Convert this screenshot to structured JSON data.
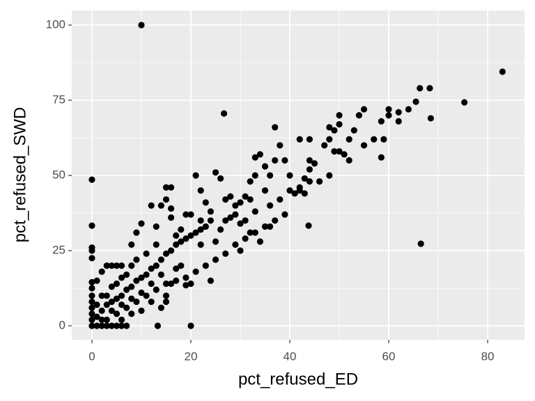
{
  "chart_data": {
    "type": "scatter",
    "x_label": "pct_refused_ED",
    "y_label": "pct_refused_SWD",
    "xlim": [
      -4.08,
      87.46
    ],
    "ylim": [
      -4.63,
      104.86
    ],
    "xticks": [
      0,
      20,
      40,
      60,
      80
    ],
    "yticks": [
      0,
      25,
      50,
      75,
      100
    ],
    "grid": true,
    "color": "#000000",
    "x": [
      10,
      83,
      75.3,
      66.5,
      26.7,
      0,
      0,
      0,
      0,
      0,
      13.3,
      20,
      43.8,
      68.5,
      68.3,
      66.3,
      65.5,
      62,
      60,
      60,
      58.5,
      59,
      58.5,
      55,
      54,
      53,
      52,
      50,
      50,
      49,
      48,
      47,
      48,
      49,
      50,
      51,
      48,
      45,
      44,
      44,
      42,
      44,
      43,
      42,
      41,
      43,
      38,
      37,
      37,
      36,
      35,
      35,
      34,
      33,
      33,
      32,
      32,
      31,
      30,
      29,
      29,
      28,
      27,
      27,
      26,
      25,
      24,
      24,
      23,
      22,
      22,
      22,
      21,
      20,
      19,
      18,
      17,
      16,
      15,
      16,
      16,
      14,
      15,
      13,
      12,
      10,
      9,
      8,
      8,
      6,
      5,
      4,
      3,
      2,
      1,
      0,
      0,
      0,
      0,
      0,
      0,
      0,
      0,
      1,
      2,
      3,
      4,
      5,
      6,
      7,
      1,
      2,
      3,
      4,
      5,
      6,
      7,
      8,
      9,
      10,
      11,
      12,
      13,
      14,
      15,
      16,
      17,
      18,
      19,
      20,
      21,
      22,
      23,
      3,
      5,
      7,
      9,
      11,
      13,
      15,
      17,
      19,
      21,
      23,
      25,
      27,
      29,
      31,
      33,
      35,
      37,
      39,
      20,
      24,
      18,
      16,
      15,
      15,
      14,
      12,
      10,
      8,
      6,
      14,
      12,
      10,
      8,
      6,
      4,
      2,
      3,
      5,
      7,
      9,
      11,
      13,
      4,
      6,
      2,
      1,
      19,
      17,
      26,
      28,
      30,
      25,
      33,
      36,
      38,
      40,
      31,
      34,
      30,
      32,
      36,
      42,
      46,
      52,
      55,
      57,
      62,
      64,
      40,
      39,
      44
    ],
    "values": [
      100,
      84.5,
      74.3,
      27.3,
      70.6,
      48.6,
      33.3,
      26,
      25,
      22.5,
      0,
      0,
      33.3,
      69,
      79,
      79,
      74.5,
      71,
      72,
      70,
      68,
      62,
      56,
      72,
      70,
      65,
      62,
      70,
      67,
      65,
      66,
      60,
      62,
      58,
      58,
      57,
      50,
      54,
      55,
      62,
      62,
      52,
      49,
      46,
      44,
      44,
      60,
      66,
      55,
      50,
      53,
      45,
      57,
      56,
      50,
      48,
      42,
      43,
      41,
      40,
      37,
      43,
      35,
      42,
      49,
      51,
      38,
      35,
      41,
      35,
      45,
      27,
      50,
      37,
      37,
      32,
      30,
      36,
      46,
      46,
      39,
      40,
      42,
      33,
      40,
      34,
      31,
      27,
      20,
      20,
      20,
      20,
      20,
      18,
      15,
      14.5,
      12.5,
      10,
      8,
      6,
      4,
      2,
      0,
      0,
      0,
      0,
      0,
      0,
      0,
      0,
      3,
      5,
      7,
      8,
      9,
      10,
      12,
      13,
      15,
      16,
      17,
      19,
      20,
      22,
      24,
      25,
      27,
      28,
      29,
      30,
      31,
      32,
      33,
      2,
      4,
      6,
      8,
      10,
      12,
      14,
      15,
      16,
      18,
      20,
      22,
      24,
      27,
      29,
      31,
      33,
      35,
      37,
      14,
      15,
      20,
      14,
      10,
      8,
      6,
      8,
      5,
      4,
      2,
      17,
      14,
      11,
      9,
      7,
      5,
      2,
      10,
      14,
      17,
      22,
      24,
      27,
      13,
      16,
      10,
      7,
      13.5,
      19,
      32,
      36,
      34,
      28,
      38,
      40,
      42,
      45,
      35,
      28,
      25,
      31,
      33,
      45,
      48,
      55,
      60,
      62,
      68,
      72,
      50,
      55,
      48
    ]
  }
}
